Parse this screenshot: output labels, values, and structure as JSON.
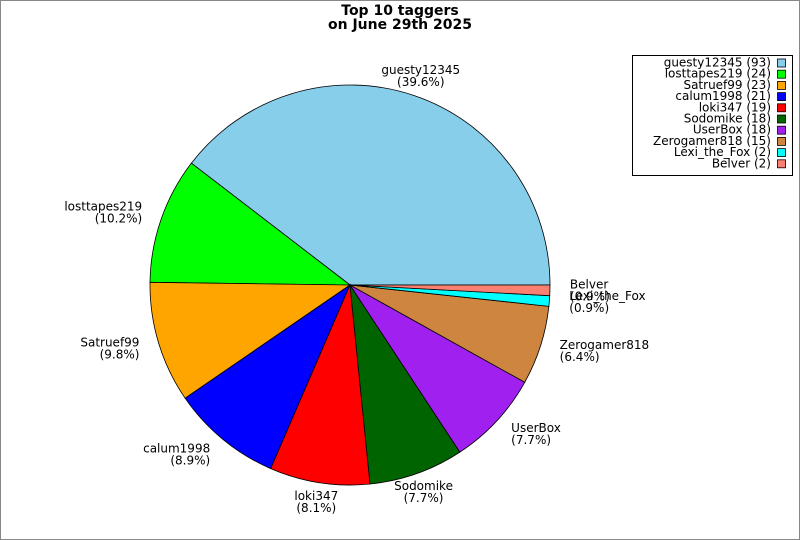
{
  "chart_data": {
    "type": "pie",
    "title": "Top 10 taggers",
    "subtitle": "on June 29th 2025",
    "categories": [
      "guesty12345",
      "losttapes219",
      "Satruef99",
      "calum1998",
      "loki347",
      "Sodomike",
      "UserBox",
      "Zerogamer818",
      "Lexi_the_Fox",
      "Belver"
    ],
    "values": [
      93,
      24,
      23,
      21,
      19,
      18,
      18,
      15,
      2,
      2
    ],
    "percentage_labels": [
      "(39.6%)",
      "(10.2%)",
      "(9.8%)",
      "(8.9%)",
      "(8.1%)",
      "(7.7%)",
      "(7.7%)",
      "(6.4%)",
      "(0.9%)",
      "(0.9%)"
    ],
    "legend_labels": [
      "guesty12345 (93)",
      "losttapes219 (24)",
      "Satruef99 (23)",
      "calum1998 (21)",
      "loki347 (19)",
      "Sodomike (18)",
      "UserBox (18)",
      "Zerogamer818 (15)",
      "Lexi_the_Fox (2)",
      "Belver (2)"
    ],
    "colors": [
      "#87ceeb",
      "#00ff00",
      "#ffa500",
      "#0000ff",
      "#ff0000",
      "#006400",
      "#a020f0",
      "#cd853f",
      "#00ffff",
      "#fa8072"
    ],
    "legend_position": "upper right"
  }
}
